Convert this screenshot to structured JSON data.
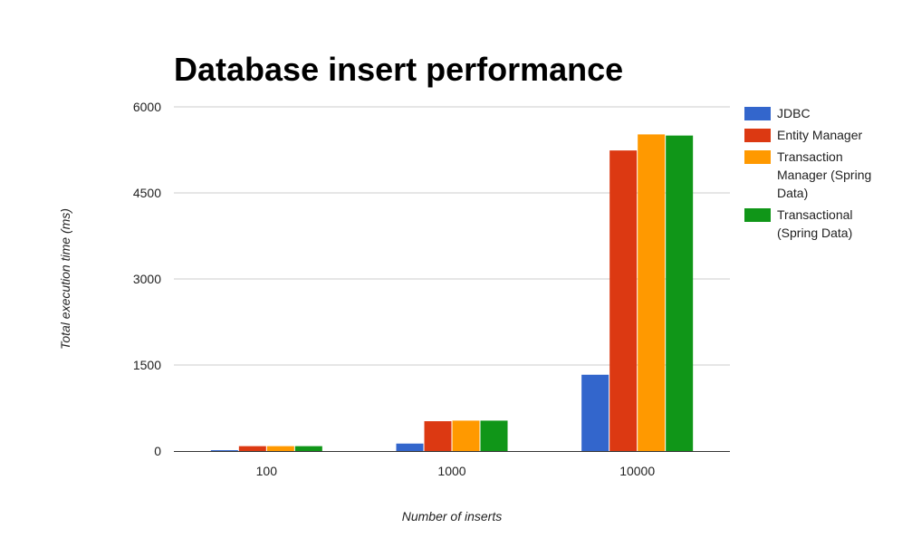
{
  "chart_data": {
    "type": "bar",
    "title": "Database insert performance",
    "xlabel": "Number of inserts",
    "ylabel": "Total execution time (ms)",
    "categories": [
      "100",
      "1000",
      "10000"
    ],
    "ylim": [
      0,
      6000
    ],
    "yticks": [
      "0",
      "1500",
      "3000",
      "4500",
      "6000"
    ],
    "grid": true,
    "legend_position": "right",
    "series": [
      {
        "name": "JDBC",
        "legend_lines": [
          "JDBC"
        ],
        "color": "#3366cc",
        "values": [
          15,
          130,
          1330
        ]
      },
      {
        "name": "Entity Manager",
        "legend_lines": [
          "Entity Manager"
        ],
        "color": "#dc3912",
        "values": [
          85,
          520,
          5240
        ]
      },
      {
        "name": "Transaction Manager (Spring Data)",
        "legend_lines": [
          "Transaction",
          "Manager (Spring",
          "Data)"
        ],
        "color": "#ff9900",
        "values": [
          85,
          530,
          5520
        ]
      },
      {
        "name": "Transactional (Spring Data)",
        "legend_lines": [
          "Transactional",
          "(Spring Data)"
        ],
        "color": "#109618",
        "values": [
          85,
          530,
          5500
        ]
      }
    ]
  }
}
